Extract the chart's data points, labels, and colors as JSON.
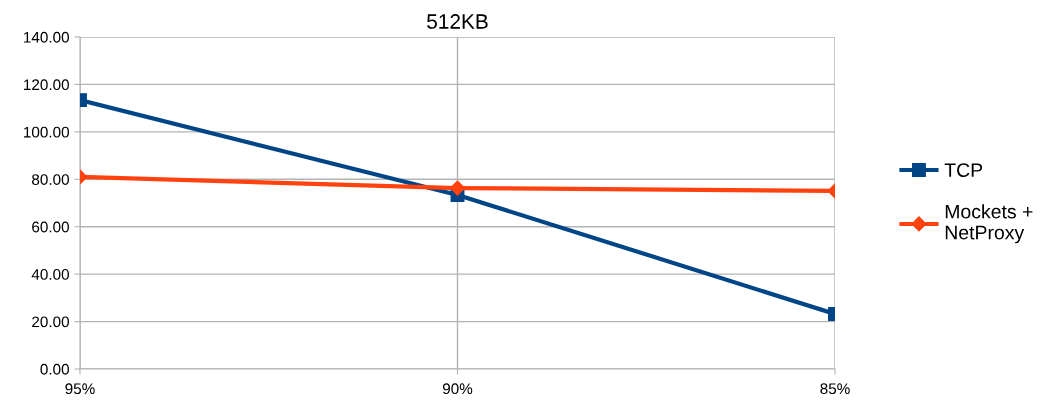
{
  "chart_data": {
    "type": "line",
    "title": "512KB",
    "categories": [
      "95%",
      "90%",
      "85%"
    ],
    "series": [
      {
        "name": "TCP",
        "color": "#004586",
        "values": [
          113.4,
          73.4,
          23.2
        ],
        "marker": "square"
      },
      {
        "name": "Mockets +\nNetProxy",
        "color": "#ff420e",
        "values": [
          81.0,
          76.3,
          75.1
        ],
        "marker": "diamond"
      }
    ],
    "ylim": [
      0,
      140
    ],
    "yticks": [
      {
        "value": 0,
        "label": "0.00"
      },
      {
        "value": 20,
        "label": "20.00"
      },
      {
        "value": 40,
        "label": "40.00"
      },
      {
        "value": 60,
        "label": "60.00"
      },
      {
        "value": 80,
        "label": "80.00"
      },
      {
        "value": 100,
        "label": "100.00"
      },
      {
        "value": 120,
        "label": "120.00"
      },
      {
        "value": 140,
        "label": "140.00"
      }
    ],
    "grid": true,
    "legend": "right",
    "line_style": "solid"
  }
}
